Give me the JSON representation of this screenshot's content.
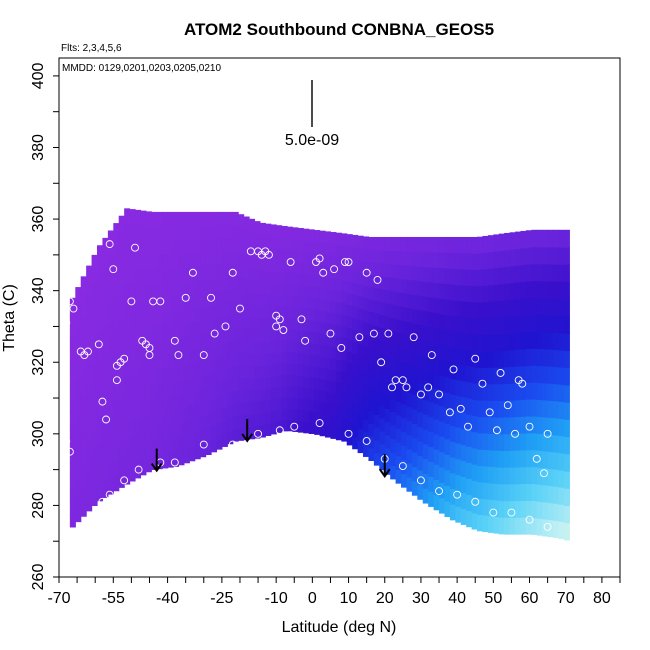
{
  "chart_data": {
    "type": "heatmap",
    "title": "ATOM2 Southbound CONBNA_GEOS5",
    "annotations": {
      "flights": "Flts: 2,3,4,5,6",
      "dates": "MMDD: 0129,0201,0203,0205,0210",
      "scale_label": "5.0e-09"
    },
    "xlabel": "Latitude (deg N)",
    "ylabel": "Theta (C)",
    "xlim": [
      -70,
      85
    ],
    "ylim": [
      260,
      405
    ],
    "x_ticks": [
      -70,
      -55,
      -40,
      -25,
      -10,
      0,
      10,
      20,
      30,
      40,
      50,
      60,
      70,
      80
    ],
    "y_ticks": [
      260,
      280,
      300,
      320,
      340,
      360,
      380,
      400
    ],
    "grid": false,
    "colormap": [
      "#8a2be2",
      "#6a24dc",
      "#3a10cc",
      "#1f14d0",
      "#1a4cf0",
      "#1fa0f5",
      "#5ad2f7",
      "#bff0f5",
      "#f0fac8"
    ],
    "field": {
      "x": [
        -67,
        -60,
        -52,
        -45,
        -38,
        -30,
        -22,
        -15,
        -8,
        0,
        8,
        15,
        22,
        30,
        38,
        45,
        52,
        60,
        67,
        71
      ],
      "upper_theta": [
        338,
        352,
        363,
        362,
        362,
        362,
        362,
        359,
        358,
        357,
        356,
        355,
        355,
        355,
        355,
        355,
        356,
        357,
        357,
        357
      ],
      "lower_theta": [
        274,
        281,
        286,
        290,
        291,
        294,
        298,
        299,
        301,
        300,
        298,
        293,
        287,
        281,
        276,
        273,
        272,
        272,
        271,
        270
      ],
      "value_bands": [
        {
          "x": -67,
          "value": 0.05
        },
        {
          "x": -45,
          "value": 0.08
        },
        {
          "x": -25,
          "value": 0.15
        },
        {
          "x": -10,
          "value": 0.2
        },
        {
          "x": 5,
          "value": 0.3
        },
        {
          "x": 15,
          "value": 0.45
        },
        {
          "x": 25,
          "value": 0.55
        },
        {
          "x": 40,
          "value": 0.7
        },
        {
          "x": 55,
          "value": 0.8
        },
        {
          "x": 71,
          "value": 0.9
        }
      ]
    },
    "arrows_lat": [
      -43,
      -18,
      20
    ],
    "points": [
      [
        -68,
        331
      ],
      [
        -67,
        337
      ],
      [
        -66,
        335
      ],
      [
        -64,
        323
      ],
      [
        -63,
        322
      ],
      [
        -62,
        323
      ],
      [
        -59,
        325
      ],
      [
        -58,
        309
      ],
      [
        -57,
        304
      ],
      [
        -56,
        353
      ],
      [
        -55,
        346
      ],
      [
        -54,
        315
      ],
      [
        -54,
        319
      ],
      [
        -53,
        320
      ],
      [
        -52,
        321
      ],
      [
        -50,
        337
      ],
      [
        -49,
        352
      ],
      [
        -47,
        326
      ],
      [
        -46,
        325
      ],
      [
        -45,
        324
      ],
      [
        -45,
        322
      ],
      [
        -44,
        337
      ],
      [
        -42,
        337
      ],
      [
        -38,
        326
      ],
      [
        -37,
        322
      ],
      [
        -35,
        338
      ],
      [
        -33,
        345
      ],
      [
        -30,
        322
      ],
      [
        -28,
        338
      ],
      [
        -27,
        328
      ],
      [
        -24,
        330
      ],
      [
        -22,
        345
      ],
      [
        -20,
        335
      ],
      [
        -17,
        351
      ],
      [
        -15,
        351
      ],
      [
        -14,
        350
      ],
      [
        -13,
        351
      ],
      [
        -12,
        350
      ],
      [
        -10,
        330
      ],
      [
        -10,
        333
      ],
      [
        -9,
        332
      ],
      [
        -8,
        329
      ],
      [
        -6,
        348
      ],
      [
        -3,
        332
      ],
      [
        -2,
        326
      ],
      [
        1,
        348
      ],
      [
        2,
        349
      ],
      [
        3,
        345
      ],
      [
        5,
        328
      ],
      [
        6,
        346
      ],
      [
        8,
        324
      ],
      [
        9,
        348
      ],
      [
        10,
        348
      ],
      [
        13,
        327
      ],
      [
        15,
        345
      ],
      [
        17,
        328
      ],
      [
        18,
        343
      ],
      [
        19,
        320
      ],
      [
        21,
        328
      ],
      [
        22,
        313
      ],
      [
        23,
        315
      ],
      [
        25,
        315
      ],
      [
        26,
        313
      ],
      [
        28,
        327
      ],
      [
        30,
        311
      ],
      [
        32,
        313
      ],
      [
        33,
        322
      ],
      [
        35,
        311
      ],
      [
        38,
        306
      ],
      [
        39,
        318
      ],
      [
        41,
        307
      ],
      [
        43,
        302
      ],
      [
        45,
        321
      ],
      [
        47,
        314
      ],
      [
        49,
        306
      ],
      [
        51,
        301
      ],
      [
        52,
        317
      ],
      [
        54,
        308
      ],
      [
        56,
        300
      ],
      [
        57,
        315
      ],
      [
        58,
        314
      ],
      [
        60,
        302
      ],
      [
        62,
        293
      ],
      [
        64,
        289
      ],
      [
        65,
        300
      ],
      [
        -68,
        298
      ],
      [
        -67,
        295
      ],
      [
        -58,
        281
      ],
      [
        -56,
        283
      ],
      [
        -52,
        287
      ],
      [
        -48,
        290
      ],
      [
        -42,
        292
      ],
      [
        -38,
        292
      ],
      [
        -30,
        297
      ],
      [
        -22,
        297
      ],
      [
        -15,
        300
      ],
      [
        -9,
        301
      ],
      [
        -5,
        302
      ],
      [
        2,
        303
      ],
      [
        10,
        300
      ],
      [
        15,
        298
      ],
      [
        20,
        293
      ],
      [
        25,
        291
      ],
      [
        30,
        287
      ],
      [
        35,
        284
      ],
      [
        40,
        283
      ],
      [
        45,
        281
      ],
      [
        50,
        278
      ],
      [
        55,
        278
      ],
      [
        60,
        276
      ],
      [
        65,
        274
      ]
    ]
  }
}
